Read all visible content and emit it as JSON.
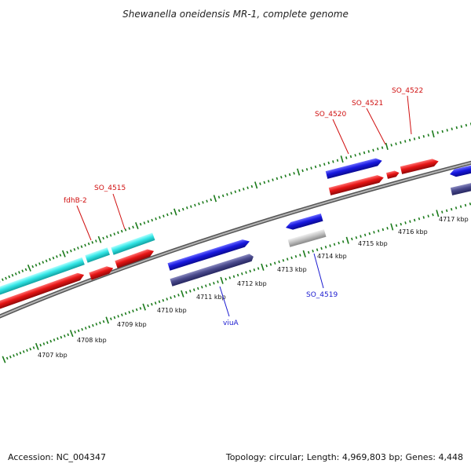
{
  "title": "Shewanella oneidensis MR-1, complete genome",
  "footer": {
    "accession": "Accession: NC_004347",
    "summary": "Topology: circular; Length: 4,969,803 bp; Genes: 4,448"
  },
  "colors": {
    "background": "#ffffff",
    "backbone": "#8c8c8c",
    "tick": "#1a7a1a",
    "forward_gene": "#1a1ae6",
    "reverse_gene": "#4a4a8c",
    "cyan_gene": "#33e6e6",
    "red_gene": "#e61414",
    "grey_gene": "#bfbfbf",
    "label_red": "#d01010",
    "label_blue": "#1a1ad0"
  },
  "tick_labels": [
    "4707 kbp",
    "4708 kbp",
    "4709 kbp",
    "4710 kbp",
    "4711 kbp",
    "4712 kbp",
    "4713 kbp",
    "4714 kbp",
    "4715 kbp",
    "4716 kbp",
    "4717 kbp"
  ],
  "gene_labels": {
    "fdhB2": "fdhB-2",
    "so4515": "SO_4515",
    "so4520": "SO_4520",
    "so4521": "SO_4521",
    "so4522": "SO_4522",
    "so4519": "SO_4519",
    "viuA": "viuA"
  }
}
